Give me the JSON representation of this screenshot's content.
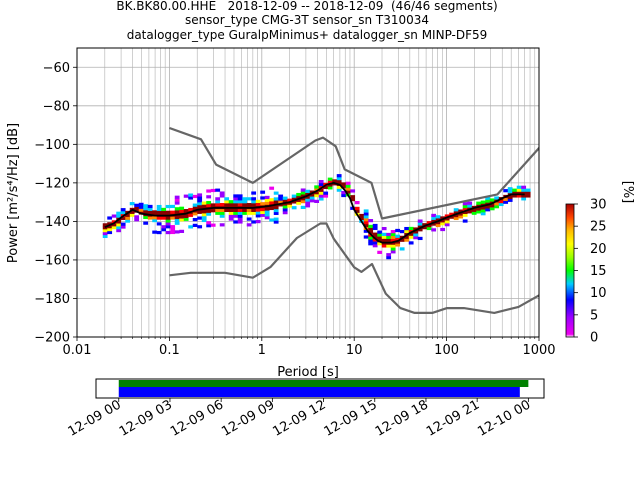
{
  "figure": {
    "title_lines": [
      "BK.BK80.00.HHE   2018-12-09 -- 2018-12-09  (46/46 segments)",
      "sensor_type CMG-3T sensor_sn T310034",
      "datalogger_type GuralpMinimus+ datalogger_sn MINP-DF59"
    ]
  },
  "chart_data": [
    {
      "type": "heatmap",
      "xlabel": "Period [s]",
      "ylabel": "Power [m²/s⁴/Hz] [dB]",
      "xscale": "log",
      "xlim": [
        0.01,
        1000
      ],
      "ylim": [
        -200,
        -50
      ],
      "x_ticks": [
        0.01,
        0.1,
        1,
        10,
        100,
        1000
      ],
      "x_tick_labels": [
        "0.01",
        "0.1",
        "1",
        "10",
        "100",
        "1000"
      ],
      "y_ticks": [
        -200,
        -180,
        -160,
        -140,
        -120,
        -100,
        -80,
        -60
      ],
      "y_tick_labels": [
        "−200",
        "−180",
        "−160",
        "−140",
        "−120",
        "−100",
        "−80",
        "−60"
      ],
      "grid": true,
      "colorbar": {
        "label": "[%]",
        "range": [
          0,
          30
        ],
        "ticks": [
          0,
          5,
          10,
          15,
          20,
          25,
          30
        ],
        "tick_labels": [
          "0",
          "5",
          "10",
          "15",
          "20",
          "25",
          "30"
        ],
        "colormap": "pqlx"
      },
      "series": [
        {
          "role": "mode-curve",
          "color": "#000000",
          "x": [
            0.02,
            0.025,
            0.03,
            0.04,
            0.05,
            0.07,
            0.1,
            0.15,
            0.2,
            0.3,
            0.5,
            0.8,
            1.2,
            2,
            3,
            4,
            5,
            6,
            7,
            8,
            9,
            10,
            12,
            14,
            16,
            18,
            20,
            25,
            30,
            40,
            60,
            80,
            100,
            150,
            200,
            300,
            400,
            500,
            700
          ],
          "y": [
            -143,
            -141,
            -138,
            -134,
            -136,
            -137,
            -137,
            -136,
            -134,
            -133,
            -133,
            -133,
            -132,
            -130,
            -127,
            -124,
            -121,
            -120,
            -121,
            -124,
            -128,
            -134,
            -140,
            -145,
            -148,
            -150,
            -151,
            -151,
            -150,
            -146,
            -142,
            -140,
            -138,
            -135,
            -133,
            -131,
            -128,
            -126,
            -126
          ]
        },
        {
          "role": "noise-model-high",
          "color": "#666666",
          "x": [
            0.1,
            0.22,
            0.32,
            0.8,
            3.8,
            4.6,
            6.3,
            7.9,
            15.4,
            20,
            354.8,
            10000
          ],
          "y": [
            -91.5,
            -97.4,
            -110.5,
            -120,
            -98,
            -96.5,
            -101,
            -113,
            -120,
            -138.5,
            -126,
            -48.5
          ]
        },
        {
          "role": "noise-model-low",
          "color": "#666666",
          "x": [
            0.1,
            0.17,
            0.4,
            0.8,
            1.24,
            2.4,
            4.3,
            5,
            6,
            10,
            12,
            15.6,
            21.9,
            31.6,
            45,
            70,
            101,
            154,
            328,
            600,
            10000
          ],
          "y": [
            -168,
            -166.7,
            -166.7,
            -169.2,
            -163.7,
            -148.6,
            -141.1,
            -141.1,
            -149,
            -163.8,
            -166.2,
            -162.1,
            -177.5,
            -185,
            -187.5,
            -187.5,
            -185,
            -185,
            -187.5,
            -184.4,
            -151.5
          ]
        }
      ]
    },
    {
      "type": "timeline",
      "x_tick_labels": [
        "12-09 00",
        "12-09 03",
        "12-09 06",
        "12-09 09",
        "12-09 12",
        "12-09 15",
        "12-09 18",
        "12-09 21",
        "12-10 00"
      ],
      "x_range": [
        "12-08 22:40",
        "12-10 00:55"
      ],
      "series": [
        {
          "role": "data-availability",
          "color": "#008000",
          "start": "12-09 00:00",
          "end": "12-10 00:00"
        },
        {
          "role": "processed-segments",
          "color": "#0000ff",
          "start": "12-09 00:00",
          "end": "12-09 23:30"
        }
      ]
    }
  ]
}
